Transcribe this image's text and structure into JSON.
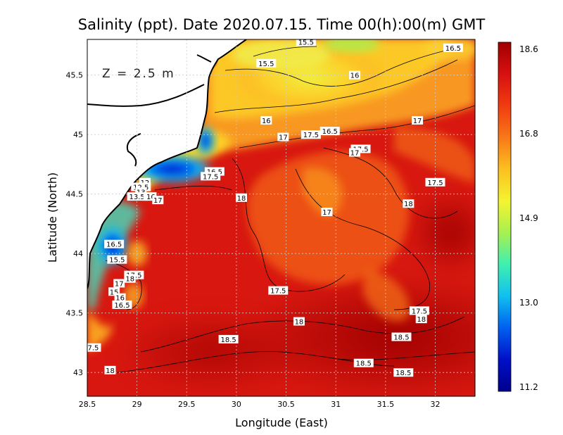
{
  "title": "Salinity (ppt). Date 2020.07.15. Time 00(h):00(m) GMT",
  "xlabel": "Longitude (East)",
  "ylabel": "Latitude (North)",
  "depth_label": "Z  =  2.5  m",
  "x_ticks": [
    "28.5",
    "29",
    "29.5",
    "30",
    "30.5",
    "31",
    "31.5",
    "32"
  ],
  "y_ticks": [
    "43",
    "43.5",
    "44",
    "44.5",
    "45",
    "45.5"
  ],
  "colorbar": {
    "ticks": [
      "18.6",
      "16.8",
      "14.9",
      "13.0",
      "11.2"
    ],
    "colors": [
      "#a00000",
      "#d81010",
      "#f03c10",
      "#f87818",
      "#fcc020",
      "#f4f430",
      "#a8f050",
      "#40f0b0",
      "#10c0f0",
      "#0060f0",
      "#0010c8",
      "#00008c"
    ]
  },
  "chart_data": {
    "type": "heatmap",
    "title": "Salinity (ppt). Date 2020.07.15. Time 00(h):00(m) GMT",
    "xlabel": "Longitude (East)",
    "ylabel": "Latitude (North)",
    "xlim": [
      28.5,
      32.4
    ],
    "ylim": [
      42.8,
      45.8
    ],
    "colorbar_range": [
      11.2,
      18.6
    ],
    "grid": true,
    "contour_labels": [
      {
        "lon": 30.7,
        "lat": 45.78,
        "text": "15.5"
      },
      {
        "lon": 32.18,
        "lat": 45.73,
        "text": "16.5"
      },
      {
        "lon": 30.3,
        "lat": 45.6,
        "text": "15.5"
      },
      {
        "lon": 31.19,
        "lat": 45.5,
        "text": "16"
      },
      {
        "lon": 30.3,
        "lat": 45.12,
        "text": "16"
      },
      {
        "lon": 31.82,
        "lat": 45.12,
        "text": "17"
      },
      {
        "lon": 30.94,
        "lat": 45.03,
        "text": "16.5"
      },
      {
        "lon": 30.75,
        "lat": 45.0,
        "text": "17.5"
      },
      {
        "lon": 30.47,
        "lat": 44.98,
        "text": "17"
      },
      {
        "lon": 31.25,
        "lat": 44.88,
        "text": "17.5"
      },
      {
        "lon": 31.19,
        "lat": 44.85,
        "text": "17"
      },
      {
        "lon": 29.78,
        "lat": 44.69,
        "text": "16.5"
      },
      {
        "lon": 29.74,
        "lat": 44.65,
        "text": "17.5"
      },
      {
        "lon": 29.08,
        "lat": 44.6,
        "text": "12"
      },
      {
        "lon": 29.04,
        "lat": 44.56,
        "text": "12.5"
      },
      {
        "lon": 29.04,
        "lat": 44.52,
        "text": "13"
      },
      {
        "lon": 29.0,
        "lat": 44.48,
        "text": "13.5"
      },
      {
        "lon": 29.1,
        "lat": 44.48,
        "text": "1"
      },
      {
        "lon": 29.14,
        "lat": 44.48,
        "text": "16"
      },
      {
        "lon": 29.21,
        "lat": 44.45,
        "text": "17"
      },
      {
        "lon": 30.05,
        "lat": 44.47,
        "text": "18"
      },
      {
        "lon": 32.0,
        "lat": 44.6,
        "text": "17.5"
      },
      {
        "lon": 31.73,
        "lat": 44.42,
        "text": "18"
      },
      {
        "lon": 30.91,
        "lat": 44.35,
        "text": "17"
      },
      {
        "lon": 28.77,
        "lat": 44.08,
        "text": "16.5"
      },
      {
        "lon": 28.8,
        "lat": 43.95,
        "text": "15.5"
      },
      {
        "lon": 28.97,
        "lat": 43.82,
        "text": "17.5"
      },
      {
        "lon": 28.93,
        "lat": 43.79,
        "text": "18"
      },
      {
        "lon": 28.82,
        "lat": 43.75,
        "text": "17"
      },
      {
        "lon": 28.77,
        "lat": 43.68,
        "text": "15"
      },
      {
        "lon": 28.83,
        "lat": 43.63,
        "text": "16"
      },
      {
        "lon": 28.85,
        "lat": 43.57,
        "text": "16.5"
      },
      {
        "lon": 30.42,
        "lat": 43.69,
        "text": "17.5"
      },
      {
        "lon": 31.84,
        "lat": 43.52,
        "text": "17.5"
      },
      {
        "lon": 31.86,
        "lat": 43.45,
        "text": "18"
      },
      {
        "lon": 30.63,
        "lat": 43.43,
        "text": "18"
      },
      {
        "lon": 31.66,
        "lat": 43.3,
        "text": "18.5"
      },
      {
        "lon": 29.92,
        "lat": 43.28,
        "text": "18.5"
      },
      {
        "lon": 28.56,
        "lat": 43.21,
        "text": "7.5"
      },
      {
        "lon": 31.28,
        "lat": 43.08,
        "text": "18.5"
      },
      {
        "lon": 31.68,
        "lat": 43.0,
        "text": "18.5"
      },
      {
        "lon": 28.73,
        "lat": 43.02,
        "text": "18"
      }
    ]
  }
}
